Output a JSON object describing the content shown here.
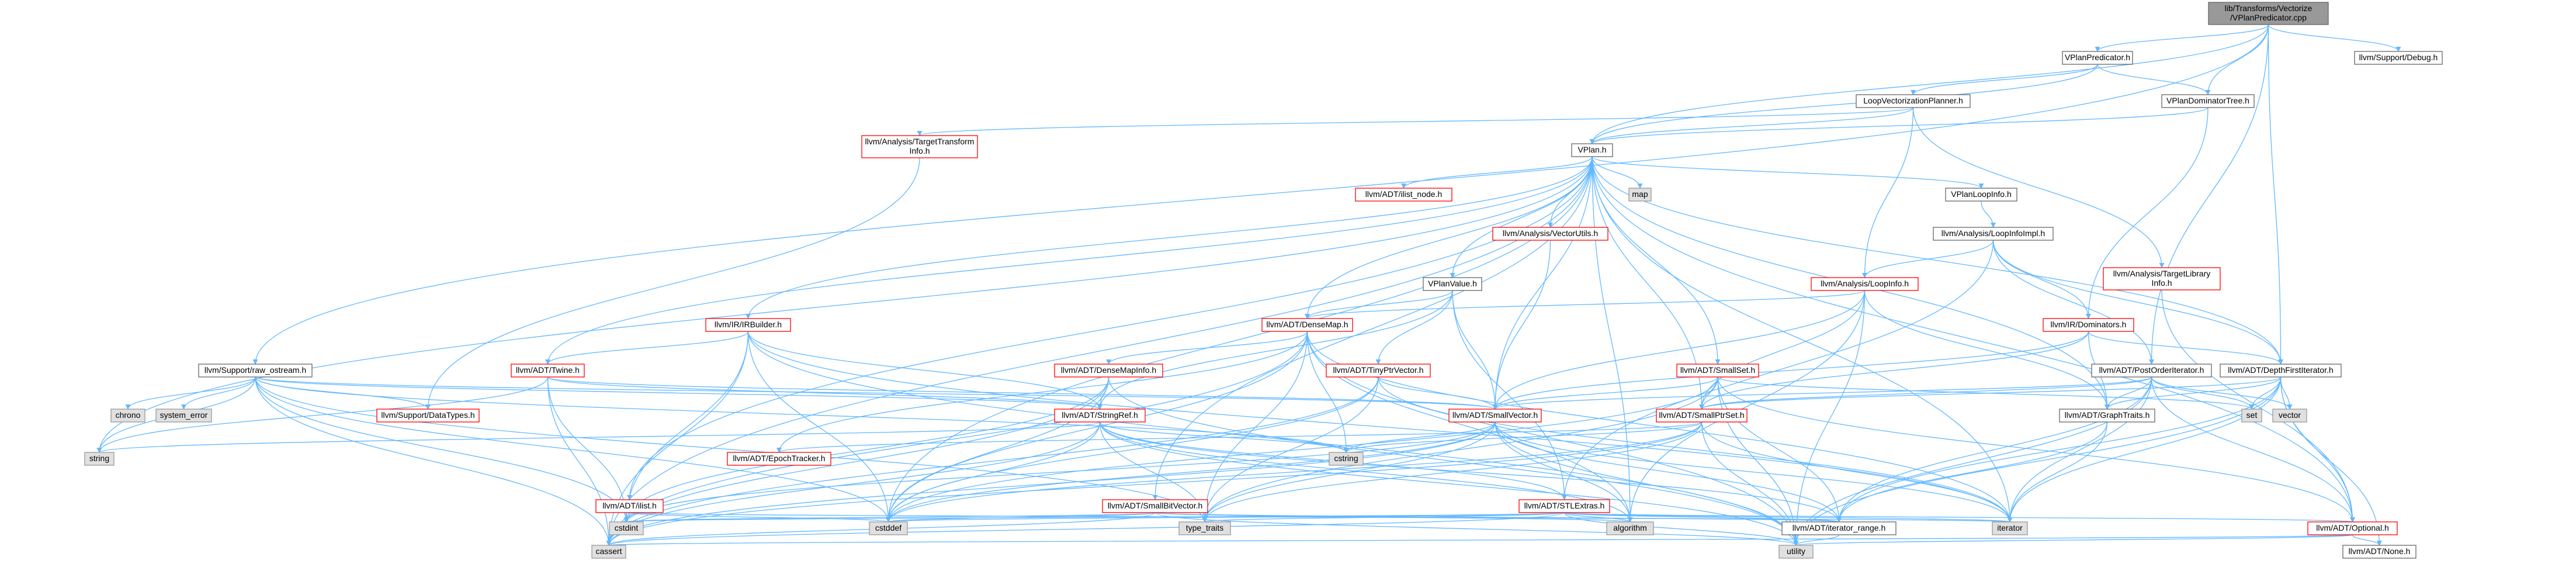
{
  "colors": {
    "edge": "#63b8ff",
    "root_fill": "#999999",
    "normal_fill": "#ffffff",
    "normal_border": "#666666",
    "incomplete_border": "#ff0000",
    "system_fill": "#e0e0e0",
    "system_border": "#999999",
    "text": "#000000"
  },
  "nodes": [
    {
      "id": "root",
      "lines": [
        "lib/Transforms/Vectorize",
        "/VPlanPredicator.cpp"
      ],
      "kind": "root"
    },
    {
      "id": "vplanpredicator_h",
      "lines": [
        "VPlanPredicator.h"
      ],
      "kind": "normal"
    },
    {
      "id": "support_debug",
      "lines": [
        "llvm/Support/Debug.h"
      ],
      "kind": "normal"
    },
    {
      "id": "loopvectplanner",
      "lines": [
        "LoopVectorizationPlanner.h"
      ],
      "kind": "normal"
    },
    {
      "id": "vplandomtree",
      "lines": [
        "VPlanDominatorTree.h"
      ],
      "kind": "normal"
    },
    {
      "id": "tti",
      "lines": [
        "llvm/Analysis/TargetTransform",
        "Info.h"
      ],
      "kind": "incomplete"
    },
    {
      "id": "vplan_h",
      "lines": [
        "VPlan.h"
      ],
      "kind": "normal"
    },
    {
      "id": "ilist_node",
      "lines": [
        "llvm/ADT/ilist_node.h"
      ],
      "kind": "incomplete"
    },
    {
      "id": "map",
      "lines": [
        "map"
      ],
      "kind": "system"
    },
    {
      "id": "vplanloopinfo",
      "lines": [
        "VPlanLoopInfo.h"
      ],
      "kind": "normal"
    },
    {
      "id": "vectorutils",
      "lines": [
        "llvm/Analysis/VectorUtils.h"
      ],
      "kind": "incomplete"
    },
    {
      "id": "loopinfoimpl",
      "lines": [
        "llvm/Analysis/LoopInfoImpl.h"
      ],
      "kind": "normal"
    },
    {
      "id": "targetlibinfo",
      "lines": [
        "llvm/Analysis/TargetLibrary",
        "Info.h"
      ],
      "kind": "incomplete"
    },
    {
      "id": "vplanvalue",
      "lines": [
        "VPlanValue.h"
      ],
      "kind": "normal"
    },
    {
      "id": "loopinfo",
      "lines": [
        "llvm/Analysis/LoopInfo.h"
      ],
      "kind": "incomplete"
    },
    {
      "id": "irbuilder",
      "lines": [
        "llvm/IR/IRBuilder.h"
      ],
      "kind": "incomplete"
    },
    {
      "id": "densemap",
      "lines": [
        "llvm/ADT/DenseMap.h"
      ],
      "kind": "incomplete"
    },
    {
      "id": "dominators",
      "lines": [
        "llvm/IR/Dominators.h"
      ],
      "kind": "incomplete"
    },
    {
      "id": "raw_ostream",
      "lines": [
        "llvm/Support/raw_ostream.h"
      ],
      "kind": "normal"
    },
    {
      "id": "twine",
      "lines": [
        "llvm/ADT/Twine.h"
      ],
      "kind": "incomplete"
    },
    {
      "id": "densemapinfo",
      "lines": [
        "llvm/ADT/DenseMapInfo.h"
      ],
      "kind": "incomplete"
    },
    {
      "id": "tinyptrvector",
      "lines": [
        "llvm/ADT/TinyPtrVector.h"
      ],
      "kind": "incomplete"
    },
    {
      "id": "smallset",
      "lines": [
        "llvm/ADT/SmallSet.h"
      ],
      "kind": "incomplete"
    },
    {
      "id": "postorderiter",
      "lines": [
        "llvm/ADT/PostOrderIterator.h"
      ],
      "kind": "normal"
    },
    {
      "id": "depthfirstiter",
      "lines": [
        "llvm/ADT/DepthFirstIterator.h"
      ],
      "kind": "normal"
    },
    {
      "id": "chrono",
      "lines": [
        "chrono"
      ],
      "kind": "system"
    },
    {
      "id": "system_error",
      "lines": [
        "system_error"
      ],
      "kind": "system"
    },
    {
      "id": "datatypes",
      "lines": [
        "llvm/Support/DataTypes.h"
      ],
      "kind": "incomplete"
    },
    {
      "id": "stringref",
      "lines": [
        "llvm/ADT/StringRef.h"
      ],
      "kind": "incomplete"
    },
    {
      "id": "smallvector",
      "lines": [
        "llvm/ADT/SmallVector.h"
      ],
      "kind": "incomplete"
    },
    {
      "id": "smallptrset",
      "lines": [
        "llvm/ADT/SmallPtrSet.h"
      ],
      "kind": "incomplete"
    },
    {
      "id": "graphtraits",
      "lines": [
        "llvm/ADT/GraphTraits.h"
      ],
      "kind": "normal"
    },
    {
      "id": "set",
      "lines": [
        "set"
      ],
      "kind": "system"
    },
    {
      "id": "vector",
      "lines": [
        "vector"
      ],
      "kind": "system"
    },
    {
      "id": "string",
      "lines": [
        "string"
      ],
      "kind": "system"
    },
    {
      "id": "epochtracker",
      "lines": [
        "llvm/ADT/EpochTracker.h"
      ],
      "kind": "incomplete"
    },
    {
      "id": "cstring",
      "lines": [
        "cstring"
      ],
      "kind": "system"
    },
    {
      "id": "ilist",
      "lines": [
        "llvm/ADT/ilist.h"
      ],
      "kind": "incomplete"
    },
    {
      "id": "smallbitvector",
      "lines": [
        "llvm/ADT/SmallBitVector.h"
      ],
      "kind": "incomplete"
    },
    {
      "id": "stlextras",
      "lines": [
        "llvm/ADT/STLExtras.h"
      ],
      "kind": "incomplete"
    },
    {
      "id": "cstdint",
      "lines": [
        "cstdint"
      ],
      "kind": "system"
    },
    {
      "id": "cstddef",
      "lines": [
        "cstddef"
      ],
      "kind": "system"
    },
    {
      "id": "type_traits",
      "lines": [
        "type_traits"
      ],
      "kind": "system"
    },
    {
      "id": "algorithm",
      "lines": [
        "algorithm"
      ],
      "kind": "system"
    },
    {
      "id": "iterator_range",
      "lines": [
        "llvm/ADT/iterator_range.h"
      ],
      "kind": "normal"
    },
    {
      "id": "iterator",
      "lines": [
        "iterator"
      ],
      "kind": "system"
    },
    {
      "id": "optional",
      "lines": [
        "llvm/ADT/Optional.h"
      ],
      "kind": "incomplete"
    },
    {
      "id": "cassert",
      "lines": [
        "cassert"
      ],
      "kind": "system"
    },
    {
      "id": "utility",
      "lines": [
        "utility"
      ],
      "kind": "system"
    },
    {
      "id": "none",
      "lines": [
        "llvm/ADT/None.h"
      ],
      "kind": "normal"
    }
  ],
  "edges": [
    [
      "root",
      "vplanpredicator_h"
    ],
    [
      "root",
      "support_debug"
    ],
    [
      "root",
      "vplan_h"
    ],
    [
      "root",
      "raw_ostream"
    ],
    [
      "root",
      "postorderiter"
    ],
    [
      "root",
      "depthfirstiter"
    ],
    [
      "root",
      "vplandomtree"
    ],
    [
      "vplanpredicator_h",
      "loopvectplanner"
    ],
    [
      "vplanpredicator_h",
      "vplandomtree"
    ],
    [
      "vplanpredicator_h",
      "vplan_h"
    ],
    [
      "loopvectplanner",
      "vplan_h"
    ],
    [
      "loopvectplanner",
      "tti"
    ],
    [
      "loopvectplanner",
      "loopinfo"
    ],
    [
      "loopvectplanner",
      "targetlibinfo"
    ],
    [
      "vplandomtree",
      "vplan_h"
    ],
    [
      "vplandomtree",
      "dominators"
    ],
    [
      "tti",
      "datatypes"
    ],
    [
      "vplan_h",
      "ilist_node"
    ],
    [
      "vplan_h",
      "map"
    ],
    [
      "vplan_h",
      "vplanloopinfo"
    ],
    [
      "vplan_h",
      "vectorutils"
    ],
    [
      "vplan_h",
      "vplanvalue"
    ],
    [
      "vplan_h",
      "irbuilder"
    ],
    [
      "vplan_h",
      "densemap"
    ],
    [
      "vplan_h",
      "twine"
    ],
    [
      "vplan_h",
      "smallset"
    ],
    [
      "vplan_h",
      "smallptrset"
    ],
    [
      "vplan_h",
      "smallvector"
    ],
    [
      "vplan_h",
      "smallbitvector"
    ],
    [
      "vplan_h",
      "graphtraits"
    ],
    [
      "vplan_h",
      "depthfirstiter"
    ],
    [
      "vplan_h",
      "ilist"
    ],
    [
      "vplan_h",
      "string"
    ],
    [
      "vplan_h",
      "cassert"
    ],
    [
      "vplan_h",
      "cstddef"
    ],
    [
      "vplan_h",
      "algorithm"
    ],
    [
      "vplan_h",
      "optional"
    ],
    [
      "vplan_h",
      "iterator"
    ],
    [
      "vplanloopinfo",
      "loopinfoimpl"
    ],
    [
      "vectorutils",
      "smallvector"
    ],
    [
      "loopinfoimpl",
      "loopinfo"
    ],
    [
      "loopinfoimpl",
      "dominators"
    ],
    [
      "loopinfoimpl",
      "depthfirstiter"
    ],
    [
      "loopinfoimpl",
      "postorderiter"
    ],
    [
      "loopinfoimpl",
      "stlextras"
    ],
    [
      "targetlibinfo",
      "optional"
    ],
    [
      "vplanvalue",
      "densemap"
    ],
    [
      "vplanvalue",
      "tinyptrvector"
    ],
    [
      "vplanvalue",
      "smallvector"
    ],
    [
      "vplanvalue",
      "stringref"
    ],
    [
      "vplanvalue",
      "stlextras"
    ],
    [
      "loopinfo",
      "densemap"
    ],
    [
      "loopinfo",
      "smallptrset"
    ],
    [
      "loopinfo",
      "graphtraits"
    ],
    [
      "loopinfo",
      "smallvector"
    ],
    [
      "loopinfo",
      "algorithm"
    ],
    [
      "loopinfo",
      "utility"
    ],
    [
      "irbuilder",
      "twine"
    ],
    [
      "irbuilder",
      "stringref"
    ],
    [
      "irbuilder",
      "cstdint"
    ],
    [
      "irbuilder",
      "cstddef"
    ],
    [
      "irbuilder",
      "cassert"
    ],
    [
      "irbuilder",
      "utility"
    ],
    [
      "irbuilder",
      "iterator"
    ],
    [
      "densemap",
      "densemapinfo"
    ],
    [
      "densemap",
      "epochtracker"
    ],
    [
      "densemap",
      "algorithm"
    ],
    [
      "densemap",
      "cassert"
    ],
    [
      "densemap",
      "cstddef"
    ],
    [
      "densemap",
      "cstring"
    ],
    [
      "densemap",
      "iterator"
    ],
    [
      "densemap",
      "type_traits"
    ],
    [
      "densemap",
      "utility"
    ],
    [
      "dominators",
      "depthfirstiter"
    ],
    [
      "dominators",
      "graphtraits"
    ],
    [
      "dominators",
      "smallptrset"
    ],
    [
      "dominators",
      "smallvector"
    ],
    [
      "raw_ostream",
      "stringref"
    ],
    [
      "raw_ostream",
      "datatypes"
    ],
    [
      "raw_ostream",
      "cassert"
    ],
    [
      "raw_ostream",
      "chrono"
    ],
    [
      "raw_ostream",
      "cstddef"
    ],
    [
      "raw_ostream",
      "cstdint"
    ],
    [
      "raw_ostream",
      "cstring"
    ],
    [
      "raw_ostream",
      "string"
    ],
    [
      "raw_ostream",
      "system_error"
    ],
    [
      "raw_ostream",
      "type_traits"
    ],
    [
      "raw_ostream",
      "smallvector"
    ],
    [
      "twine",
      "smallvector"
    ],
    [
      "twine",
      "stringref"
    ],
    [
      "twine",
      "cassert"
    ],
    [
      "twine",
      "cstdint"
    ],
    [
      "twine",
      "string"
    ],
    [
      "densemapinfo",
      "cassert"
    ],
    [
      "densemapinfo",
      "cstddef"
    ],
    [
      "densemapinfo",
      "cstdint"
    ],
    [
      "densemapinfo",
      "utility"
    ],
    [
      "densemapinfo",
      "stringref"
    ],
    [
      "tinyptrvector",
      "smallvector"
    ],
    [
      "tinyptrvector",
      "cassert"
    ],
    [
      "tinyptrvector",
      "cstddef"
    ],
    [
      "tinyptrvector",
      "iterator"
    ],
    [
      "tinyptrvector",
      "type_traits"
    ],
    [
      "smallset",
      "smallptrset"
    ],
    [
      "smallset",
      "smallvector"
    ],
    [
      "smallset",
      "iterator_range"
    ],
    [
      "smallset",
      "optional"
    ],
    [
      "smallset",
      "cstddef"
    ],
    [
      "smallset",
      "functional"
    ],
    [
      "smallset",
      "set"
    ],
    [
      "smallset",
      "type_traits"
    ],
    [
      "smallset",
      "utility"
    ],
    [
      "postorderiter",
      "graphtraits"
    ],
    [
      "postorderiter",
      "smallptrset"
    ],
    [
      "postorderiter",
      "smallvector"
    ],
    [
      "postorderiter",
      "iterator_range"
    ],
    [
      "postorderiter",
      "optional"
    ],
    [
      "postorderiter",
      "set"
    ],
    [
      "postorderiter",
      "utility"
    ],
    [
      "postorderiter",
      "iterator"
    ],
    [
      "postorderiter",
      "vector"
    ],
    [
      "depthfirstiter",
      "graphtraits"
    ],
    [
      "depthfirstiter",
      "smallptrset"
    ],
    [
      "depthfirstiter",
      "iterator_range"
    ],
    [
      "depthfirstiter",
      "optional"
    ],
    [
      "depthfirstiter",
      "set"
    ],
    [
      "depthfirstiter",
      "utility"
    ],
    [
      "depthfirstiter",
      "vector"
    ],
    [
      "depthfirstiter",
      "iterator"
    ],
    [
      "depthfirstiter",
      "none"
    ],
    [
      "stringref",
      "cstring"
    ],
    [
      "stringref",
      "stlextras"
    ],
    [
      "stringref",
      "iterator_range"
    ],
    [
      "stringref",
      "algorithm"
    ],
    [
      "stringref",
      "cassert"
    ],
    [
      "stringref",
      "cstddef"
    ],
    [
      "stringref",
      "string"
    ],
    [
      "stringref",
      "type_traits"
    ],
    [
      "stringref",
      "utility"
    ],
    [
      "smallvector",
      "algorithm"
    ],
    [
      "smallvector",
      "cassert"
    ],
    [
      "smallvector",
      "cstddef"
    ],
    [
      "smallvector",
      "cstdint"
    ],
    [
      "smallvector",
      "cstring"
    ],
    [
      "smallvector",
      "iterator"
    ],
    [
      "smallvector",
      "type_traits"
    ],
    [
      "smallvector",
      "utility"
    ],
    [
      "smallvector",
      "iterator_range"
    ],
    [
      "smallptrset",
      "epochtracker"
    ],
    [
      "smallptrset",
      "cassert"
    ],
    [
      "smallptrset",
      "cstddef"
    ],
    [
      "smallptrset",
      "cstring"
    ],
    [
      "smallptrset",
      "iterator"
    ],
    [
      "smallptrset",
      "utility"
    ],
    [
      "smallptrset",
      "type_traits"
    ],
    [
      "graphtraits",
      "iterator_range"
    ],
    [
      "graphtraits",
      "iterator"
    ],
    [
      "ilist",
      "cassert"
    ],
    [
      "ilist",
      "cstddef"
    ],
    [
      "ilist",
      "iterator"
    ],
    [
      "smallbitvector",
      "cassert"
    ],
    [
      "smallbitvector",
      "cstddef"
    ],
    [
      "smallbitvector",
      "iterator_range"
    ],
    [
      "smallbitvector",
      "utility"
    ],
    [
      "smallbitvector",
      "algorithm"
    ],
    [
      "smallbitvector",
      "cstdint"
    ],
    [
      "stlextras",
      "optional"
    ],
    [
      "stlextras",
      "iterator_range"
    ],
    [
      "stlextras",
      "algorithm"
    ],
    [
      "stlextras",
      "cassert"
    ],
    [
      "stlextras",
      "cstddef"
    ],
    [
      "stlextras",
      "cstdint"
    ],
    [
      "stlextras",
      "iterator"
    ],
    [
      "stlextras",
      "type_traits"
    ],
    [
      "stlextras",
      "utility"
    ],
    [
      "iterator_range",
      "utility"
    ],
    [
      "optional",
      "none"
    ],
    [
      "optional",
      "cassert"
    ],
    [
      "optional",
      "utility"
    ]
  ]
}
